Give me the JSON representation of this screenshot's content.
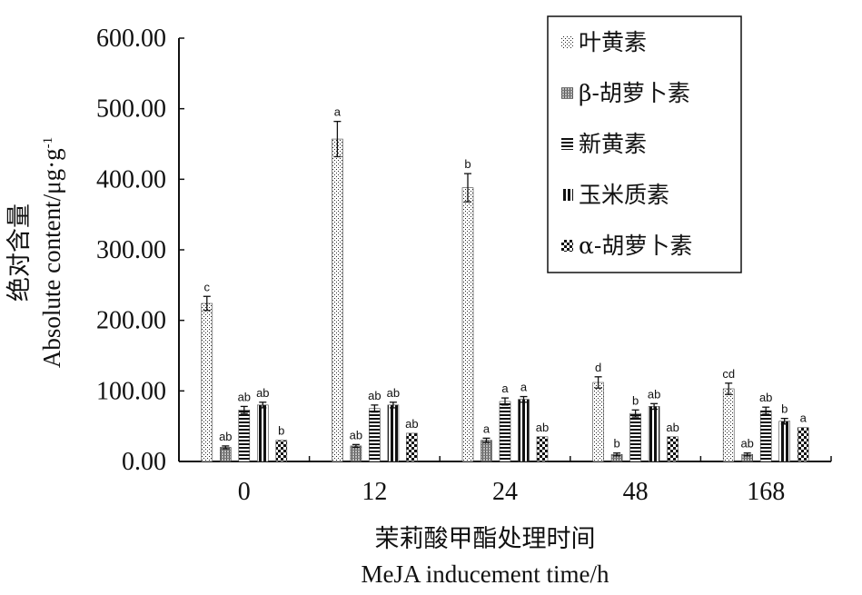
{
  "chart_data": {
    "type": "bar",
    "ylabel_cn": "绝对含量",
    "ylabel_en": "Absolute content/μg·g",
    "ylabel_sup": "-1",
    "xlabel_cn": "茉莉酸甲酯处理时间",
    "xlabel_en": "MeJA inducement time/h",
    "categories": [
      "0",
      "12",
      "24",
      "48",
      "168"
    ],
    "ylim": [
      0,
      600
    ],
    "yticks": [
      "0.00",
      "100.00",
      "200.00",
      "300.00",
      "400.00",
      "500.00",
      "600.00"
    ],
    "grid": false,
    "legend_position": "top-right",
    "series": [
      {
        "name": "叶黄素",
        "pattern": "dots",
        "values": [
          224,
          457,
          388,
          112,
          103
        ],
        "errors": [
          10,
          25,
          20,
          8,
          8
        ],
        "labels": [
          "c",
          "a",
          "b",
          "d",
          "cd"
        ]
      },
      {
        "name": "β-胡萝卜素",
        "pattern": "fine",
        "values": [
          20,
          22,
          30,
          10,
          10
        ],
        "errors": [
          2,
          2,
          3,
          2,
          2
        ],
        "labels": [
          "ab",
          "ab",
          "a",
          "b",
          "ab"
        ]
      },
      {
        "name": "新黄素",
        "pattern": "hlines",
        "values": [
          73,
          75,
          85,
          68,
          72
        ],
        "errors": [
          5,
          5,
          5,
          5,
          5
        ],
        "labels": [
          "ab",
          "ab",
          "a",
          "b",
          "ab"
        ]
      },
      {
        "name": "玉米质素",
        "pattern": "vlines",
        "values": [
          80,
          80,
          88,
          78,
          57
        ],
        "errors": [
          4,
          4,
          4,
          4,
          4
        ],
        "labels": [
          "ab",
          "ab",
          "a",
          "ab",
          "b"
        ]
      },
      {
        "name": "α-胡萝卜素",
        "pattern": "checker",
        "values": [
          30,
          40,
          35,
          35,
          48
        ],
        "errors": [
          0,
          0,
          0,
          0,
          0
        ],
        "labels": [
          "b",
          "ab",
          "ab",
          "ab",
          "a"
        ]
      }
    ]
  }
}
